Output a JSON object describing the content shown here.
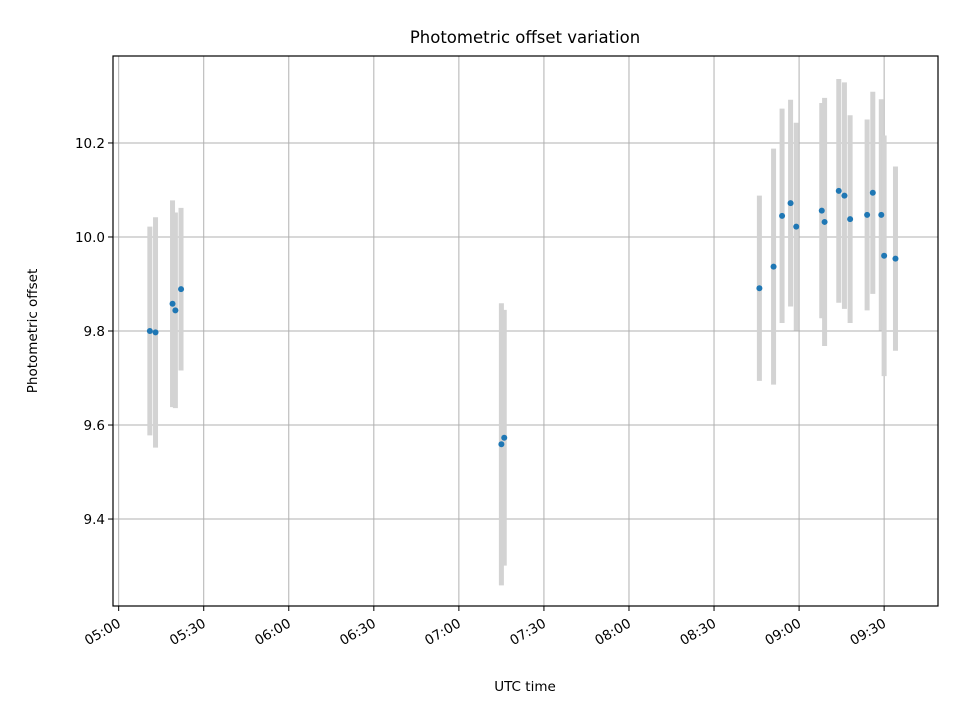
{
  "chart_data": {
    "type": "scatter",
    "title": "Photometric offset variation",
    "xlabel": "UTC time",
    "ylabel": "Photometric offset",
    "x_ticks": [
      "05:00",
      "05:30",
      "06:00",
      "06:30",
      "07:00",
      "07:30",
      "08:00",
      "08:30",
      "09:00",
      "09:30"
    ],
    "y_ticks": [
      "9.4",
      "9.6",
      "9.8",
      "10.0",
      "10.2"
    ],
    "xlim": [
      "04:58",
      "09:49"
    ],
    "ylim": [
      9.215,
      10.385
    ],
    "grid": true,
    "legend": "none",
    "colors": {
      "points": "#1f77b4",
      "errorbars": "#d3d3d3",
      "grid": "#b0b0b0"
    },
    "points": [
      {
        "x": "05:11",
        "y": 9.8,
        "err": 0.222
      },
      {
        "x": "05:13",
        "y": 9.797,
        "err": 0.245
      },
      {
        "x": "05:19",
        "y": 9.858,
        "err": 0.22
      },
      {
        "x": "05:20",
        "y": 9.844,
        "err": 0.208
      },
      {
        "x": "05:22",
        "y": 9.889,
        "err": 0.173
      },
      {
        "x": "07:15",
        "y": 9.559,
        "err": 0.3
      },
      {
        "x": "07:16",
        "y": 9.573,
        "err": 0.272
      },
      {
        "x": "08:46",
        "y": 9.891,
        "err": 0.197
      },
      {
        "x": "08:51",
        "y": 9.937,
        "err": 0.251
      },
      {
        "x": "08:54",
        "y": 10.045,
        "err": 0.228
      },
      {
        "x": "08:57",
        "y": 10.072,
        "err": 0.22
      },
      {
        "x": "08:59",
        "y": 10.022,
        "err": 0.221
      },
      {
        "x": "09:08",
        "y": 10.056,
        "err": 0.229
      },
      {
        "x": "09:09",
        "y": 10.032,
        "err": 0.264
      },
      {
        "x": "09:14",
        "y": 10.098,
        "err": 0.238
      },
      {
        "x": "09:16",
        "y": 10.088,
        "err": 0.241
      },
      {
        "x": "09:18",
        "y": 10.038,
        "err": 0.221
      },
      {
        "x": "09:24",
        "y": 10.047,
        "err": 0.203
      },
      {
        "x": "09:26",
        "y": 10.094,
        "err": 0.215
      },
      {
        "x": "09:29",
        "y": 10.047,
        "err": 0.246
      },
      {
        "x": "09:30",
        "y": 9.96,
        "err": 0.256
      },
      {
        "x": "09:34",
        "y": 9.954,
        "err": 0.196
      }
    ]
  }
}
